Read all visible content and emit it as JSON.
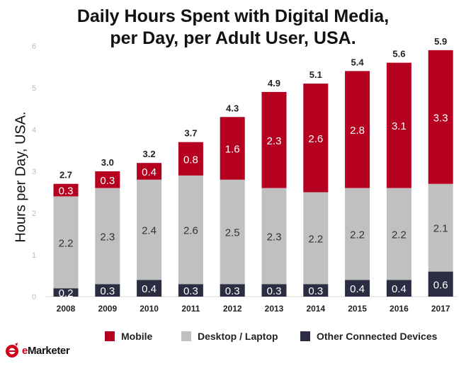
{
  "chart_data": {
    "type": "bar",
    "stacked": true,
    "title": "Daily Hours Spent with Digital Media, per Day, per Adult User, USA.",
    "title_lines": [
      "Daily Hours Spent with Digital Media,",
      "per Day, per Adult User, USA."
    ],
    "ylabel": "Hours per Day, USA.",
    "xlabel": "",
    "ylim": [
      0,
      6
    ],
    "yticks": [
      "0",
      "1",
      "2",
      "3",
      "4",
      "5",
      "6"
    ],
    "grid": false,
    "legend_position": "bottom",
    "categories": [
      "2008",
      "2009",
      "2010",
      "2011",
      "2012",
      "2013",
      "2014",
      "2015",
      "2016",
      "2017"
    ],
    "series": [
      {
        "name": "Other Connected Devices",
        "color": "#2b2d42",
        "values": [
          0.2,
          0.3,
          0.4,
          0.3,
          0.3,
          0.3,
          0.3,
          0.4,
          0.4,
          0.6
        ],
        "labels": [
          "0.2",
          "0.3",
          "0.4",
          "0.3",
          "0.3",
          "0.3",
          "0.3",
          "0.4",
          "0.4",
          "0.6"
        ]
      },
      {
        "name": "Desktop / Laptop",
        "color": "#c0c0c0",
        "values": [
          2.2,
          2.3,
          2.4,
          2.6,
          2.5,
          2.3,
          2.2,
          2.2,
          2.2,
          2.1
        ],
        "labels": [
          "2.2",
          "2.3",
          "2.4",
          "2.6",
          "2.5",
          "2.3",
          "2.2",
          "2.2",
          "2.2",
          "2.1"
        ]
      },
      {
        "name": "Mobile",
        "color": "#b5001f",
        "values": [
          0.3,
          0.3,
          0.4,
          0.8,
          1.6,
          2.3,
          2.6,
          2.8,
          3.1,
          3.3
        ],
        "labels": [
          "0.3",
          "0.3",
          "0.4",
          "0.8",
          "1.6",
          "2.3",
          "2.6",
          "2.8",
          "3.1",
          "3.3"
        ]
      }
    ],
    "totals": [
      2.7,
      3.0,
      3.2,
      3.7,
      4.3,
      4.9,
      5.1,
      5.4,
      5.6,
      5.9
    ],
    "total_labels": [
      "2.7",
      "3.0",
      "3.2",
      "3.7",
      "4.3",
      "4.9",
      "5.1",
      "5.4",
      "5.6",
      "5.9"
    ]
  },
  "legend": [
    {
      "name": "Mobile",
      "color": "#b5001f"
    },
    {
      "name": "Desktop / Laptop",
      "color": "#c0c0c0"
    },
    {
      "name": "Other Connected Devices",
      "color": "#2b2d42"
    }
  ],
  "logo": {
    "brand": "eMarketer",
    "brand_e": "e",
    "brand_rest": "Marketer"
  }
}
